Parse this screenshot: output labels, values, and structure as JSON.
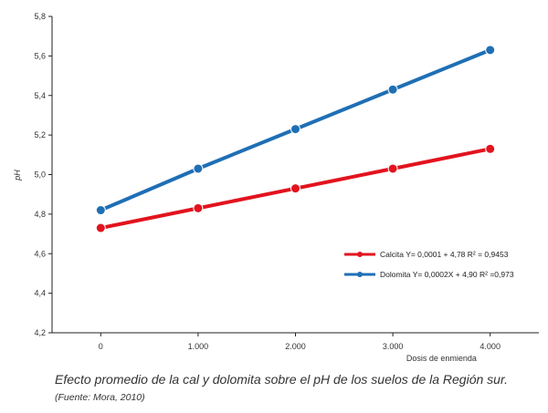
{
  "chart_data": {
    "type": "line",
    "xlabel": "Dosis de enmienda",
    "ylabel": "pH",
    "x": [
      0,
      1000,
      2000,
      3000,
      4000
    ],
    "x_tick_labels": [
      "0",
      "1.000",
      "2.000",
      "3.000",
      "4.000"
    ],
    "y_ticks": [
      4.2,
      4.4,
      4.6,
      4.8,
      5.0,
      5.2,
      5.4,
      5.6,
      5.8
    ],
    "y_tick_labels": [
      "4,2",
      "4,4",
      "4,6",
      "4,8",
      "5,0",
      "5,2",
      "5,4",
      "5,6",
      "5,8"
    ],
    "ylim": [
      4.2,
      5.8
    ],
    "xlim": [
      -500,
      4500
    ],
    "grid": false,
    "legend_position": "right",
    "series": [
      {
        "name": "Calcita Y= 0,0001 + 4,78 R² = 0,9453",
        "color": "#e2131e",
        "values": [
          4.73,
          4.83,
          4.93,
          5.03,
          5.13
        ]
      },
      {
        "name": "Dolomita Y= 0,0002X + 4,90 R² =0,973",
        "color": "#1f6fb5",
        "values": [
          4.82,
          5.03,
          5.23,
          5.43,
          5.63
        ]
      }
    ]
  },
  "caption": "Efecto promedio de la cal y dolomita sobre el pH de los suelos de la Región sur.",
  "source": "(Fuente: Mora, 2010)"
}
